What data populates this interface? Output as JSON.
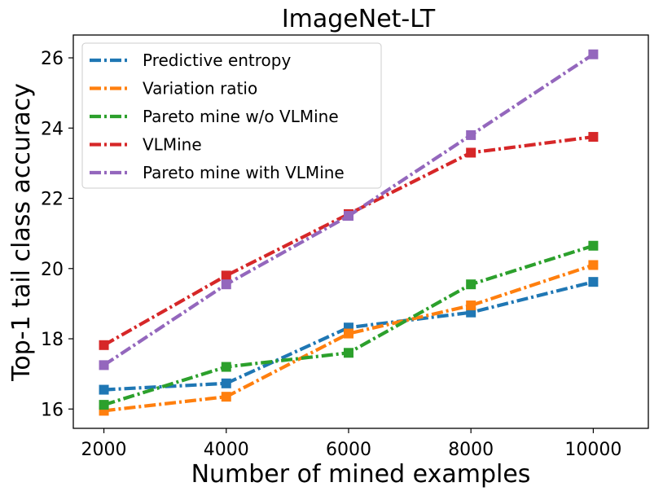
{
  "chart_data": {
    "type": "line",
    "title": "ImageNet-LT",
    "xlabel": "Number of mined examples",
    "ylabel": "Top-1 tail class accuracy",
    "x": [
      2000,
      4000,
      6000,
      8000,
      10000
    ],
    "xticks": [
      "2000",
      "4000",
      "6000",
      "8000",
      "10000"
    ],
    "yticks": [
      "16",
      "18",
      "20",
      "22",
      "24",
      "26"
    ],
    "ytick_values": [
      16,
      18,
      20,
      22,
      24,
      26
    ],
    "xlim": [
      1500,
      10900
    ],
    "ylim": [
      15.45,
      26.65
    ],
    "grid": false,
    "legend_position": "top-left",
    "line_style": "dash-dot",
    "marker": "square",
    "series": [
      {
        "name": "Predictive entropy",
        "color": "#1f77b4",
        "values": [
          16.55,
          16.73,
          18.32,
          18.75,
          19.62
        ]
      },
      {
        "name": "Variation ratio",
        "color": "#ff7f0e",
        "values": [
          15.95,
          16.35,
          18.15,
          18.95,
          20.1
        ]
      },
      {
        "name": "Pareto mine w/o VLMine",
        "color": "#2ca02c",
        "values": [
          16.12,
          17.2,
          17.6,
          19.55,
          20.65
        ]
      },
      {
        "name": "VLMine",
        "color": "#d62728",
        "values": [
          17.82,
          19.8,
          21.55,
          23.3,
          23.75
        ]
      },
      {
        "name": "Pareto mine with VLMine",
        "color": "#9467bd",
        "values": [
          17.25,
          19.55,
          21.5,
          23.8,
          26.1
        ]
      }
    ]
  }
}
